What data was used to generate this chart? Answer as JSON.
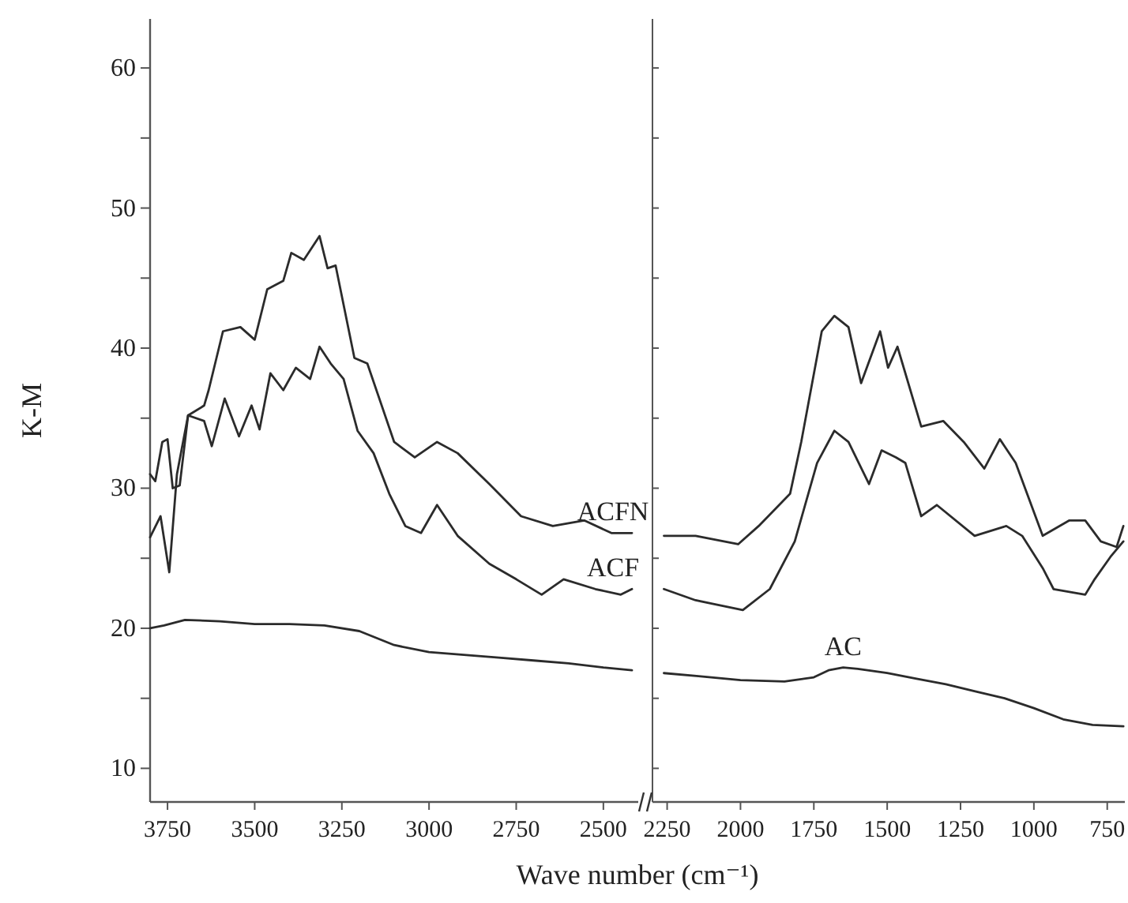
{
  "chart_data": [
    {
      "type": "line",
      "ylabel": "K-M",
      "xlabel": "Wave number (cm⁻¹)",
      "xlim": [
        3800,
        2400
      ],
      "xticks": [
        3750,
        3500,
        3250,
        3000,
        2750,
        2500
      ],
      "ylim": [
        7.6,
        63.5
      ],
      "yticks": [
        10,
        {
          "value": 15,
          "label": null
        },
        20,
        {
          "value": 25,
          "label": null
        },
        30,
        {
          "value": 35,
          "label": null
        },
        40,
        {
          "value": 45,
          "label": null
        },
        50,
        {
          "value": 55,
          "label": null
        },
        60
      ],
      "grid": false,
      "marker": "none",
      "line_style": "solid",
      "series": [
        {
          "name": "ACFN",
          "color": "#2b2b2b",
          "x": [
            3800,
            3785,
            3765,
            3750,
            3735,
            3715,
            3691,
            3645,
            3632,
            3591,
            3541,
            3500,
            3464,
            3418,
            3395,
            3359,
            3314,
            3291,
            3268,
            3214,
            3177,
            3100,
            3041,
            2977,
            2918,
            2827,
            2736,
            2645,
            2555,
            2477,
            2418
          ],
          "values": [
            31,
            30.5,
            33.3,
            33.5,
            30,
            30.2,
            35.2,
            35.9,
            37,
            41.2,
            41.5,
            40.6,
            44.2,
            44.8,
            46.8,
            46.3,
            48,
            45.7,
            45.9,
            39.3,
            38.9,
            33.3,
            32.2,
            33.3,
            32.5,
            30.3,
            28,
            27.3,
            27.7,
            26.8,
            26.8
          ]
        },
        {
          "name": "ACF",
          "color": "#2b2b2b",
          "x": [
            3800,
            3770,
            3745,
            3723,
            3691,
            3645,
            3623,
            3586,
            3545,
            3509,
            3486,
            3455,
            3418,
            3382,
            3341,
            3314,
            3282,
            3245,
            3205,
            3159,
            3114,
            3068,
            3023,
            2977,
            2918,
            2827,
            2750,
            2677,
            2614,
            2523,
            2450,
            2418
          ],
          "values": [
            26.5,
            28,
            24,
            31,
            35.2,
            34.8,
            33,
            36.4,
            33.7,
            35.9,
            34.2,
            38.2,
            37,
            38.6,
            37.8,
            40.1,
            38.9,
            37.8,
            34.1,
            32.5,
            29.6,
            27.3,
            26.8,
            28.8,
            26.6,
            24.6,
            23.5,
            22.4,
            23.5,
            22.8,
            22.4,
            22.8
          ]
        },
        {
          "color": "#2b2b2b",
          "x": [
            3800,
            3760,
            3700,
            3600,
            3500,
            3400,
            3300,
            3200,
            3100,
            3000,
            2900,
            2800,
            2700,
            2600,
            2500,
            2418
          ],
          "values": [
            20,
            20.2,
            20.6,
            20.5,
            20.3,
            20.3,
            20.2,
            19.8,
            18.8,
            18.3,
            18.1,
            17.9,
            17.7,
            17.5,
            17.2,
            17
          ]
        }
      ]
    },
    {
      "type": "line",
      "xlim": [
        2300,
        690
      ],
      "xticks": [
        2250,
        2000,
        1750,
        1500,
        1250,
        1000,
        750
      ],
      "ylim": [
        7.6,
        63.5
      ],
      "yticks": [
        10,
        {
          "value": 15,
          "label": null
        },
        20,
        {
          "value": 25,
          "label": null
        },
        30,
        {
          "value": 35,
          "label": null
        },
        40,
        {
          "value": 45,
          "label": null
        },
        50,
        {
          "value": 55,
          "label": null
        },
        60
      ],
      "tick_labels": "x",
      "grid": false,
      "marker": "none",
      "line_style": "solid",
      "series": [
        {
          "color": "#2b2b2b",
          "x": [
            2261,
            2153,
            2008,
            1938,
            1831,
            1793,
            1723,
            1680,
            1632,
            1589,
            1524,
            1497,
            1465,
            1384,
            1309,
            1239,
            1169,
            1116,
            1062,
            970,
            879,
            825,
            772,
            718,
            695
          ],
          "values": [
            26.6,
            26.6,
            26,
            27.3,
            29.6,
            33.3,
            41.2,
            42.3,
            41.5,
            37.5,
            41.2,
            38.6,
            40.1,
            34.4,
            34.8,
            33.3,
            31.4,
            33.5,
            31.8,
            26.6,
            27.7,
            27.7,
            26.2,
            25.8,
            27.3
          ]
        },
        {
          "color": "#2b2b2b",
          "x": [
            2261,
            2153,
            1992,
            1900,
            1815,
            1739,
            1680,
            1632,
            1562,
            1519,
            1470,
            1438,
            1384,
            1331,
            1202,
            1094,
            1040,
            970,
            933,
            825,
            793,
            739,
            695
          ],
          "values": [
            22.8,
            22,
            21.3,
            22.8,
            26.2,
            31.8,
            34.1,
            33.3,
            30.3,
            32.7,
            32.2,
            31.8,
            28,
            28.8,
            26.6,
            27.3,
            26.6,
            24.3,
            22.8,
            22.4,
            23.5,
            25.1,
            26.2
          ]
        },
        {
          "name": "AC",
          "color": "#2b2b2b",
          "x": [
            2261,
            2150,
            2000,
            1850,
            1750,
            1700,
            1650,
            1600,
            1500,
            1400,
            1300,
            1200,
            1100,
            1000,
            900,
            800,
            695
          ],
          "values": [
            16.8,
            16.6,
            16.3,
            16.2,
            16.5,
            17,
            17.2,
            17.1,
            16.8,
            16.4,
            16,
            15.5,
            15,
            14.3,
            13.5,
            13.1,
            13
          ]
        }
      ]
    }
  ]
}
